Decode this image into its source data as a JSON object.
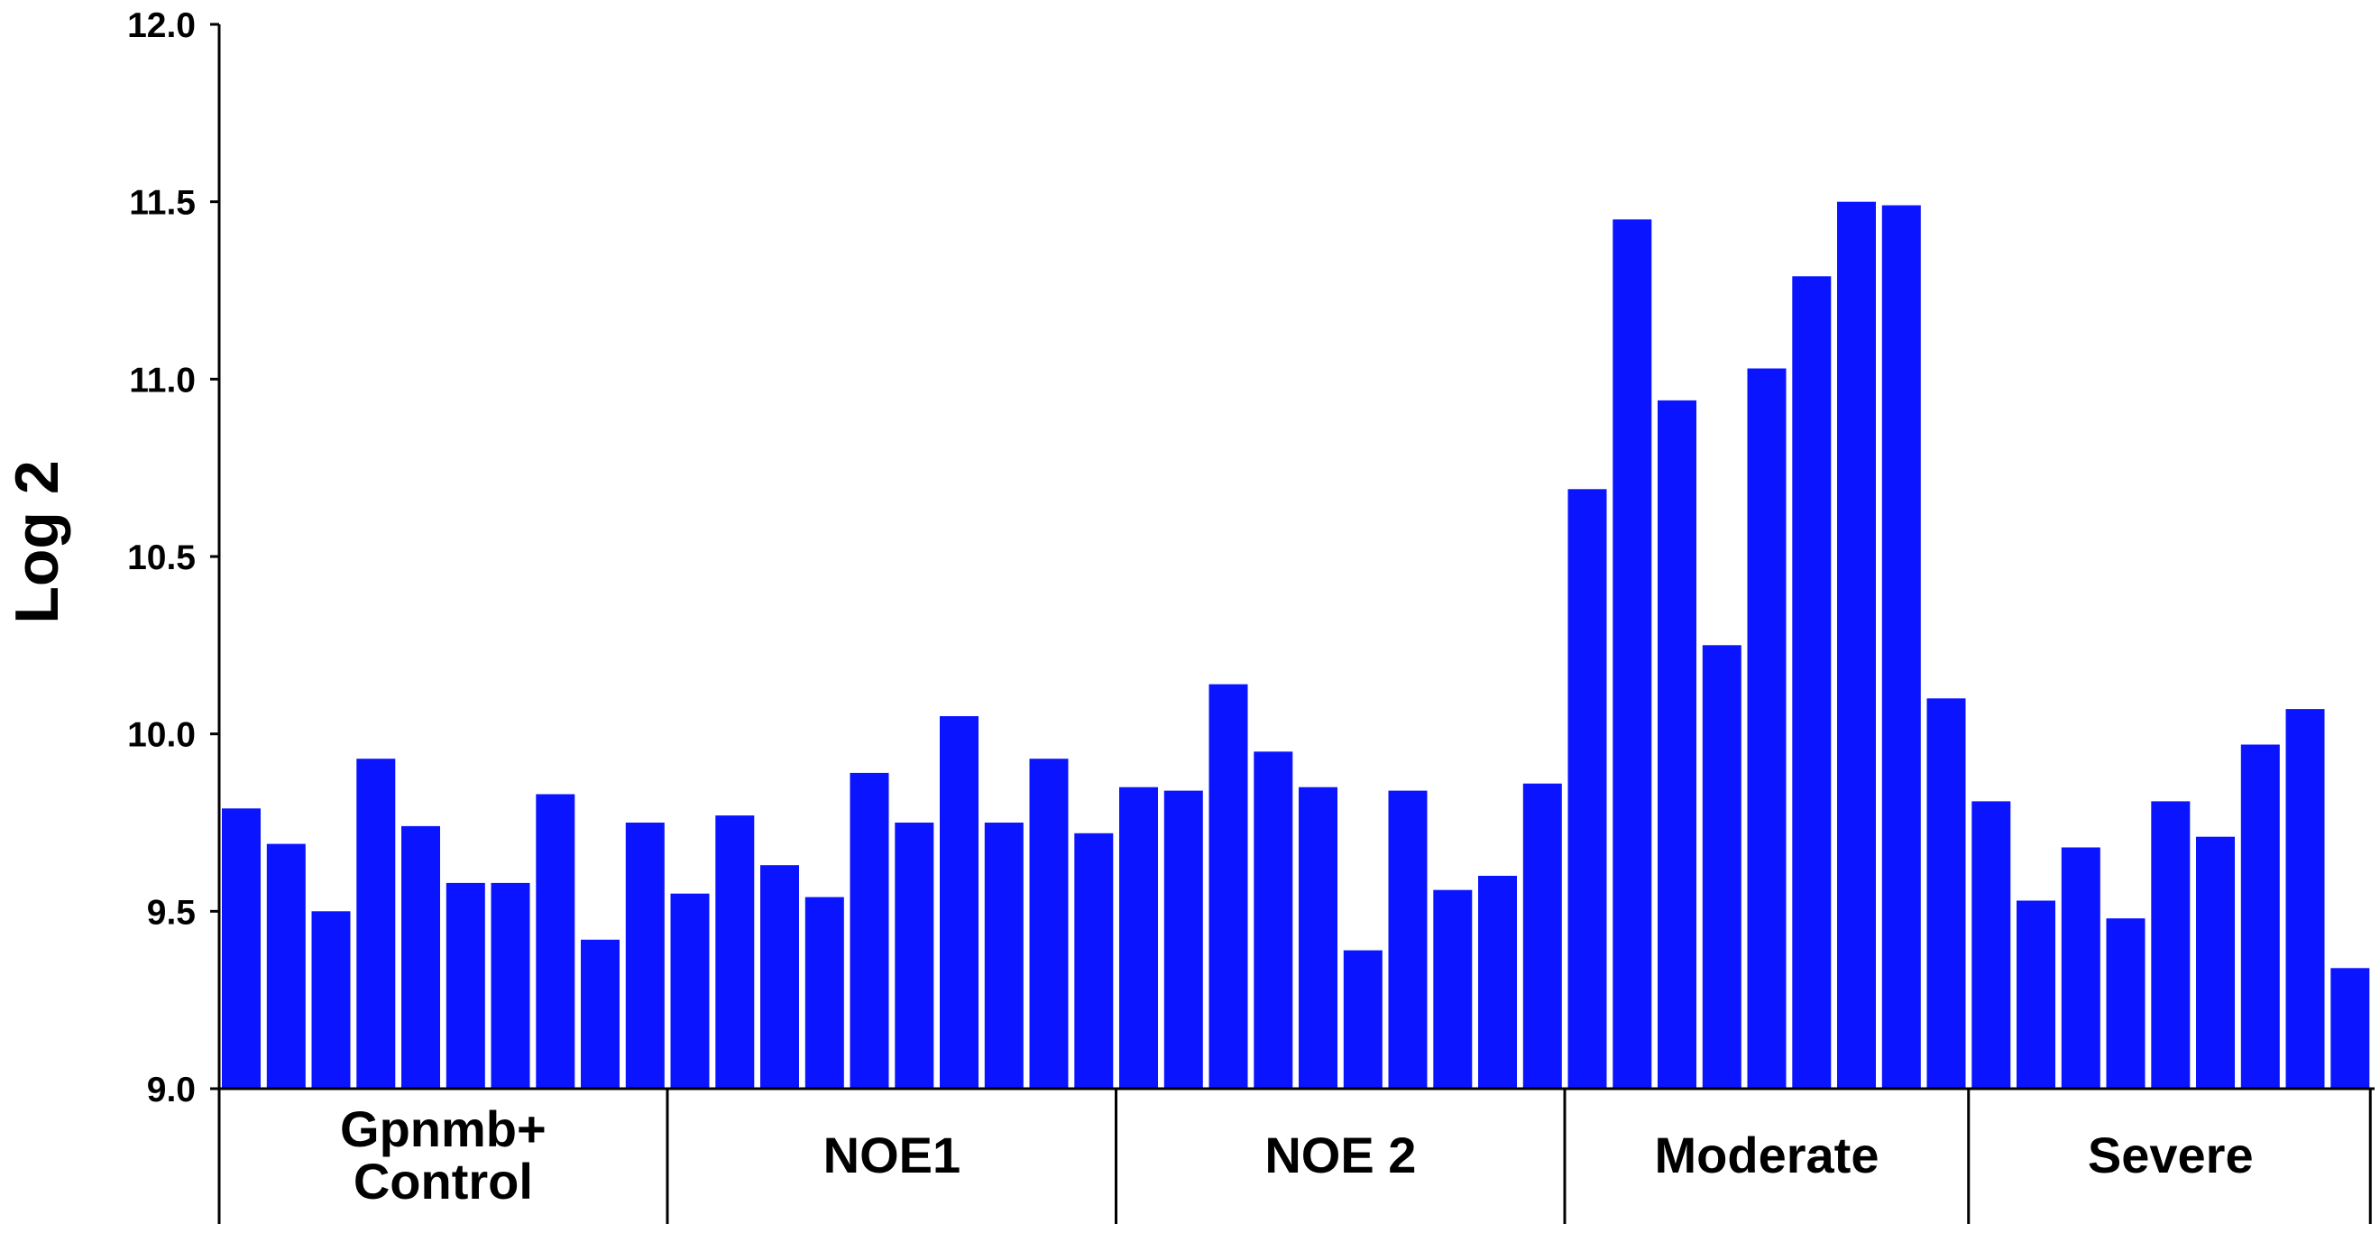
{
  "chart_data": {
    "type": "bar",
    "ylabel": "Log 2",
    "xlabel": "",
    "ylim": [
      9.0,
      12.0
    ],
    "yticks": [
      9.0,
      9.5,
      10.0,
      10.5,
      11.0,
      11.5,
      12.0
    ],
    "ytick_labels": [
      "9.0",
      "9.5",
      "10.0",
      "10.5",
      "11.0",
      "11.5",
      "12.0"
    ],
    "bar_color": "#0a14ff",
    "groups": [
      {
        "label_lines": [
          "Gpnmb+",
          "Control"
        ],
        "values": [
          9.79,
          9.69,
          9.5,
          9.93,
          9.74,
          9.58,
          9.58,
          9.83,
          9.42,
          9.75
        ]
      },
      {
        "label_lines": [
          "NOE1"
        ],
        "values": [
          9.55,
          9.77,
          9.63,
          9.54,
          9.89,
          9.75,
          10.05,
          9.75,
          9.93,
          9.72
        ]
      },
      {
        "label_lines": [
          "NOE 2"
        ],
        "values": [
          9.85,
          9.84,
          10.14,
          9.95,
          9.85,
          9.39,
          9.84,
          9.56,
          9.6,
          9.86
        ]
      },
      {
        "label_lines": [
          "Moderate"
        ],
        "values": [
          10.69,
          11.45,
          10.94,
          10.25,
          11.03,
          11.29,
          11.5,
          11.49,
          10.1
        ]
      },
      {
        "label_lines": [
          "Severe"
        ],
        "values": [
          9.81,
          9.53,
          9.68,
          9.48,
          9.81,
          9.71,
          9.97,
          10.07,
          9.34
        ]
      }
    ]
  }
}
